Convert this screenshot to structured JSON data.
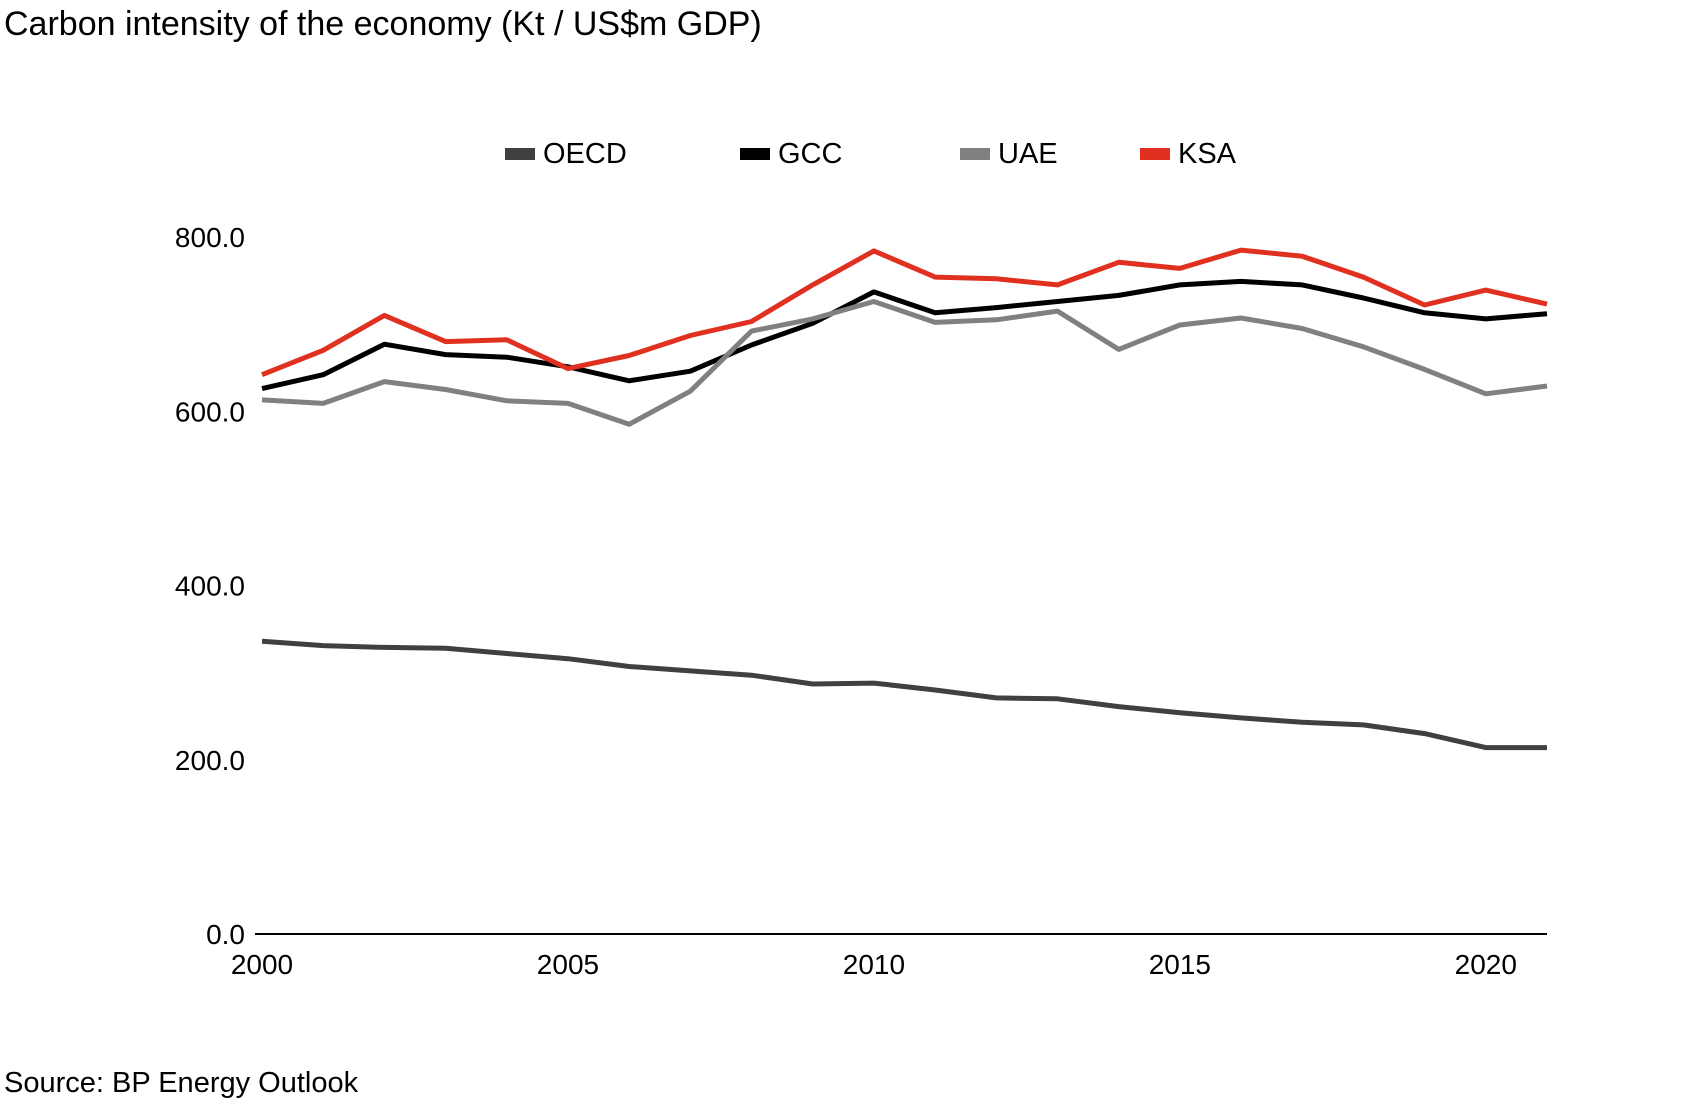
{
  "title": "Carbon intensity of the economy (Kt / US$m GDP)",
  "source": "Source: BP Energy Outlook",
  "chart_data": {
    "type": "line",
    "title": "Carbon intensity of the economy (Kt / US$m GDP)",
    "xlabel": "",
    "ylabel": "",
    "x": [
      2000,
      2001,
      2002,
      2003,
      2004,
      2005,
      2006,
      2007,
      2008,
      2009,
      2010,
      2011,
      2012,
      2013,
      2014,
      2015,
      2016,
      2017,
      2018,
      2019,
      2020,
      2021
    ],
    "xlim": [
      2000,
      2021
    ],
    "ylim": [
      0,
      800
    ],
    "x_ticks": [
      2000,
      2005,
      2010,
      2015,
      2020
    ],
    "y_ticks": [
      "0.0",
      "200.0",
      "400.0",
      "600.0",
      "800.0"
    ],
    "grid": false,
    "legend_position": "top-center",
    "series": [
      {
        "name": "OECD",
        "color": "#404040",
        "values": [
          336,
          331,
          329,
          328,
          322,
          316,
          307,
          302,
          297,
          287,
          288,
          280,
          271,
          270,
          261,
          254,
          248,
          243,
          240,
          230,
          214,
          214
        ]
      },
      {
        "name": "GCC",
        "color": "#000000",
        "values": [
          626,
          642,
          677,
          665,
          662,
          651,
          635,
          646,
          676,
          701,
          737,
          713,
          719,
          726,
          733,
          745,
          749,
          745,
          730,
          713,
          706,
          712
        ]
      },
      {
        "name": "UAE",
        "color": "#808080",
        "values": [
          613,
          609,
          634,
          625,
          612,
          609,
          585,
          623,
          692,
          706,
          726,
          702,
          705,
          715,
          671,
          699,
          707,
          695,
          674,
          648,
          620,
          629
        ]
      },
      {
        "name": "KSA",
        "color": "#e03020",
        "values": [
          642,
          670,
          710,
          680,
          682,
          649,
          664,
          687,
          703,
          745,
          784,
          754,
          752,
          745,
          771,
          764,
          785,
          778,
          754,
          722,
          739,
          723
        ]
      }
    ]
  }
}
